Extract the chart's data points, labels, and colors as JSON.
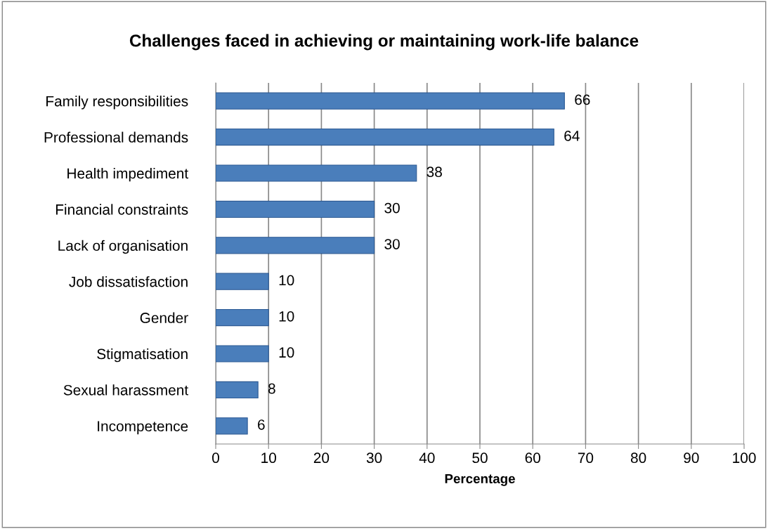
{
  "chart_data": {
    "type": "bar",
    "orientation": "horizontal",
    "title": "Challenges faced in achieving or maintaining work-life balance",
    "xlabel": "Percentage",
    "categories": [
      "Family responsibilities",
      "Professional demands",
      "Health impediment",
      "Financial constraints",
      "Lack of organisation",
      "Job dissatisfaction",
      "Gender",
      "Stigmatisation",
      "Sexual harassment",
      "Incompetence"
    ],
    "values": [
      66,
      64,
      38,
      30,
      30,
      10,
      10,
      10,
      8,
      6
    ],
    "color": "#4a7ebb",
    "xlim": [
      0,
      100
    ],
    "xticks": [
      0,
      10,
      20,
      30,
      40,
      50,
      60,
      70,
      80,
      90,
      100
    ],
    "grid": "x",
    "data_labels": true
  }
}
